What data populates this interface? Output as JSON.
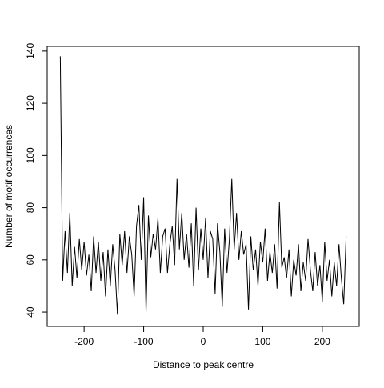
{
  "chart_data": {
    "type": "line",
    "xlabel": "Distance to peak centre",
    "ylabel": "Number of motif occurrences",
    "x": [
      -240,
      -236,
      -232,
      -228,
      -224,
      -220,
      -216,
      -212,
      -208,
      -204,
      -200,
      -196,
      -192,
      -188,
      -184,
      -180,
      -176,
      -172,
      -168,
      -164,
      -160,
      -156,
      -152,
      -148,
      -144,
      -140,
      -136,
      -132,
      -128,
      -124,
      -120,
      -116,
      -112,
      -108,
      -104,
      -100,
      -96,
      -92,
      -88,
      -84,
      -80,
      -76,
      -72,
      -68,
      -64,
      -60,
      -56,
      -52,
      -48,
      -44,
      -40,
      -36,
      -32,
      -28,
      -24,
      -20,
      -16,
      -12,
      -8,
      -4,
      0,
      4,
      8,
      12,
      16,
      20,
      24,
      28,
      32,
      36,
      40,
      44,
      48,
      52,
      56,
      60,
      64,
      68,
      72,
      76,
      80,
      84,
      88,
      92,
      96,
      100,
      104,
      108,
      112,
      116,
      120,
      124,
      128,
      132,
      136,
      140,
      144,
      148,
      152,
      156,
      160,
      164,
      168,
      172,
      176,
      180,
      184,
      188,
      192,
      196,
      200,
      204,
      208,
      212,
      216,
      220,
      224,
      228,
      232,
      236,
      240
    ],
    "values": [
      138,
      52,
      71,
      55,
      78,
      50,
      65,
      53,
      68,
      56,
      67,
      54,
      62,
      48,
      69,
      55,
      67,
      52,
      63,
      46,
      64,
      50,
      66,
      56,
      39,
      70,
      58,
      71,
      55,
      69,
      62,
      46,
      73,
      81,
      60,
      84,
      40,
      77,
      61,
      70,
      64,
      76,
      55,
      69,
      72,
      55,
      66,
      73,
      58,
      91,
      64,
      78,
      60,
      70,
      57,
      74,
      50,
      80,
      56,
      72,
      60,
      76,
      53,
      71,
      68,
      47,
      74,
      63,
      42,
      72,
      55,
      68,
      91,
      64,
      78,
      60,
      71,
      62,
      66,
      41,
      69,
      56,
      64,
      50,
      67,
      59,
      72,
      52,
      63,
      55,
      66,
      49,
      82,
      57,
      61,
      53,
      64,
      46,
      60,
      54,
      66,
      48,
      59,
      52,
      68,
      56,
      48,
      63,
      50,
      58,
      44,
      67,
      52,
      60,
      46,
      59,
      50,
      66,
      53,
      43,
      69
    ],
    "color": "#000000",
    "xlim": [
      -262,
      262
    ],
    "ylim": [
      34.5,
      141.8
    ],
    "xticks": [
      -200,
      -100,
      0,
      100,
      200
    ],
    "yticks": [
      40,
      60,
      80,
      100,
      120,
      140
    ]
  }
}
